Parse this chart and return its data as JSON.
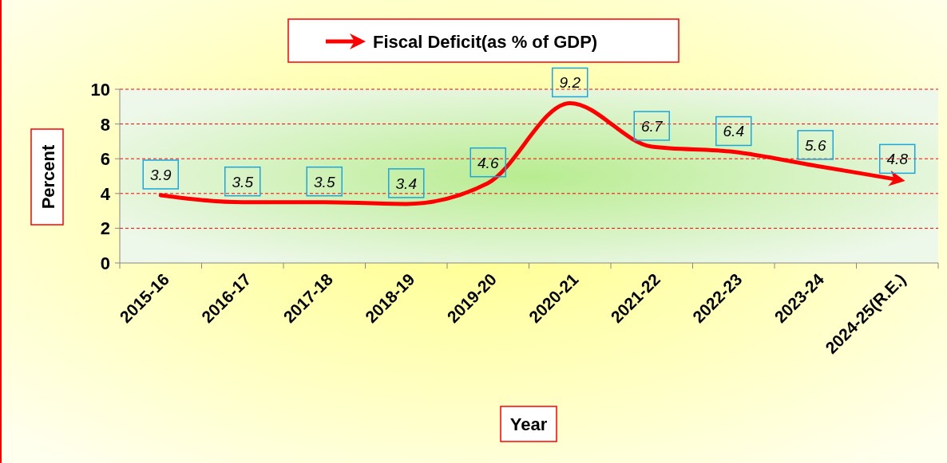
{
  "chart_data": {
    "type": "line",
    "xlabel": "Year",
    "ylabel": "Percent",
    "categories": [
      "2015-16",
      "2016-17",
      "2017-18",
      "2018-19",
      "2019-20",
      "2020-21",
      "2021-22",
      "2022-23",
      "2023-24",
      "2024-25(R.E.)"
    ],
    "series": [
      {
        "name": "Fiscal Deficit(as % of GDP)",
        "color": "#ff0000",
        "values": [
          3.9,
          3.5,
          3.5,
          3.4,
          4.6,
          9.2,
          6.7,
          6.4,
          5.6,
          4.8
        ]
      }
    ],
    "ylim": [
      0,
      10
    ],
    "yticks": [
      0,
      2,
      4,
      6,
      8,
      10
    ],
    "grid": "y",
    "legend": "top",
    "marker": "none",
    "line_style": "solid",
    "data_labels": true
  }
}
